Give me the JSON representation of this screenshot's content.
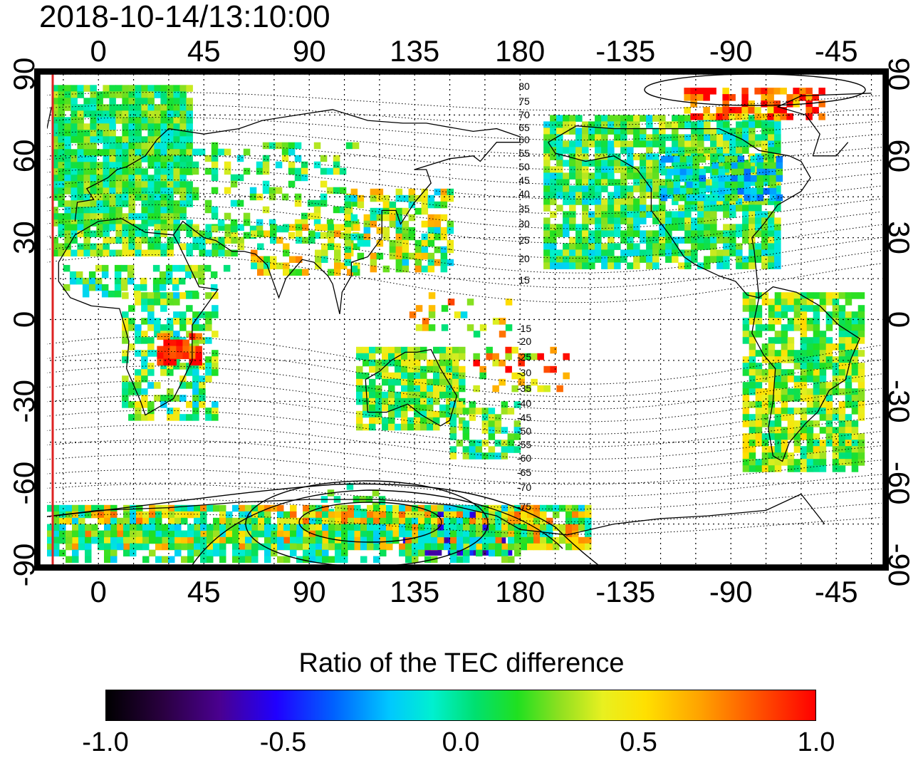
{
  "timestamp": "2018-10-14/13:10:00",
  "map": {
    "lon_labels": [
      "0",
      "45",
      "90",
      "135",
      "180",
      "-135",
      "-90",
      "-45"
    ],
    "lat_labels": [
      "90",
      "60",
      "30",
      "0",
      "-30",
      "-60",
      "-90"
    ],
    "mag_lat_labels_north": [
      "80",
      "75",
      "70",
      "65",
      "60",
      "55",
      "50",
      "45",
      "40",
      "35",
      "30",
      "25",
      "20",
      "15"
    ],
    "mag_lat_labels_south": [
      "-15",
      "-20",
      "-25",
      "-30",
      "-35",
      "-40",
      "-45",
      "-50",
      "-55",
      "-60",
      "-65",
      "-70",
      "-75"
    ]
  },
  "colorbar": {
    "title": "Ratio of the TEC difference",
    "ticks": [
      "-1.0",
      "-0.5",
      "0.0",
      "0.5",
      "1.0"
    ],
    "tick_values": [
      -1.0,
      -0.5,
      0.0,
      0.5,
      1.0
    ],
    "min": -1.0,
    "max": 1.0
  },
  "colors": {
    "terminator": "#dd2222",
    "cb_low": "#000000",
    "cb_mid": "#00e070",
    "cb_high": "#ff0000"
  }
}
